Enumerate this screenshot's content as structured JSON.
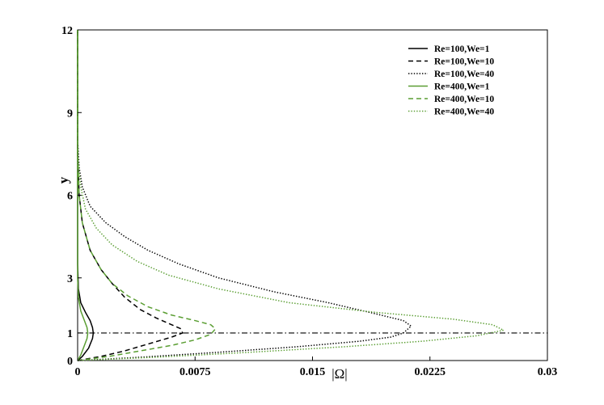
{
  "chart_data": {
    "type": "line",
    "title": "",
    "xlabel": "|Ω|",
    "ylabel": "y",
    "xlim": [
      0,
      0.03
    ],
    "ylim": [
      0,
      12
    ],
    "x_ticks": [
      "0",
      "0.0075",
      "0.015",
      "0.0225",
      "0.03"
    ],
    "y_ticks": [
      "0",
      "1",
      "3",
      "6",
      "9",
      "12"
    ],
    "legend_position": "top-right",
    "grid": false,
    "reference_line": {
      "y": 1,
      "style": "dash-dot",
      "color": "#000000"
    },
    "series": [
      {
        "name": "Re=100,We=1",
        "color": "#000000",
        "dash": "solid",
        "points": [
          [
            0,
            0
          ],
          [
            0.0003,
            0.15
          ],
          [
            0.0007,
            0.45
          ],
          [
            0.00095,
            0.8
          ],
          [
            0.001,
            1.0
          ],
          [
            0.00095,
            1.2
          ],
          [
            0.0008,
            1.45
          ],
          [
            0.0005,
            1.75
          ],
          [
            0.0002,
            2.1
          ],
          [
            5e-05,
            2.6
          ],
          [
            0,
            3.5
          ],
          [
            0,
            12
          ]
        ]
      },
      {
        "name": "Re=100,We=10",
        "color": "#000000",
        "dash": "dashed",
        "points": [
          [
            0,
            0
          ],
          [
            0.0015,
            0.15
          ],
          [
            0.003,
            0.35
          ],
          [
            0.0045,
            0.6
          ],
          [
            0.006,
            0.85
          ],
          [
            0.0067,
            1.0
          ],
          [
            0.0066,
            1.15
          ],
          [
            0.006,
            1.3
          ],
          [
            0.005,
            1.55
          ],
          [
            0.004,
            1.85
          ],
          [
            0.003,
            2.3
          ],
          [
            0.0022,
            2.8
          ],
          [
            0.0015,
            3.3
          ],
          [
            0.0008,
            4.0
          ],
          [
            0.0003,
            5.0
          ],
          [
            0.0001,
            6.0
          ],
          [
            0,
            7.5
          ],
          [
            0,
            12
          ]
        ]
      },
      {
        "name": "Re=100,We=40",
        "color": "#000000",
        "dash": "dotted",
        "points": [
          [
            0,
            0
          ],
          [
            0.004,
            0.12
          ],
          [
            0.009,
            0.3
          ],
          [
            0.014,
            0.5
          ],
          [
            0.018,
            0.7
          ],
          [
            0.02,
            0.85
          ],
          [
            0.0208,
            1.0
          ],
          [
            0.0213,
            1.25
          ],
          [
            0.0208,
            1.45
          ],
          [
            0.019,
            1.7
          ],
          [
            0.016,
            2.1
          ],
          [
            0.0125,
            2.5
          ],
          [
            0.009,
            3.0
          ],
          [
            0.0065,
            3.5
          ],
          [
            0.0045,
            4.0
          ],
          [
            0.003,
            4.5
          ],
          [
            0.0018,
            5.0
          ],
          [
            0.0008,
            5.6
          ],
          [
            0.0003,
            6.3
          ],
          [
            0.0001,
            7.0
          ],
          [
            0,
            8.0
          ],
          [
            0,
            12
          ]
        ]
      },
      {
        "name": "Re=400,We=1",
        "color": "#5a9e32",
        "dash": "solid",
        "points": [
          [
            0,
            0
          ],
          [
            0.0002,
            0.2
          ],
          [
            0.0004,
            0.5
          ],
          [
            0.0006,
            0.8
          ],
          [
            0.00065,
            1.0
          ],
          [
            0.0006,
            1.2
          ],
          [
            0.0004,
            1.5
          ],
          [
            0.0002,
            1.8
          ],
          [
            5e-05,
            2.3
          ],
          [
            0,
            3.0
          ],
          [
            0,
            12
          ]
        ]
      },
      {
        "name": "Re=400,We=10",
        "color": "#5a9e32",
        "dash": "dashed",
        "points": [
          [
            0,
            0
          ],
          [
            0.002,
            0.15
          ],
          [
            0.004,
            0.35
          ],
          [
            0.006,
            0.55
          ],
          [
            0.0075,
            0.75
          ],
          [
            0.0085,
            0.95
          ],
          [
            0.0088,
            1.15
          ],
          [
            0.0085,
            1.3
          ],
          [
            0.0075,
            1.45
          ],
          [
            0.006,
            1.65
          ],
          [
            0.0045,
            1.95
          ],
          [
            0.0032,
            2.35
          ],
          [
            0.0022,
            2.8
          ],
          [
            0.0015,
            3.3
          ],
          [
            0.0008,
            4.0
          ],
          [
            0.0003,
            5.0
          ],
          [
            0.0001,
            6.0
          ],
          [
            0,
            7.5
          ],
          [
            0,
            12
          ]
        ]
      },
      {
        "name": "Re=400,We=40",
        "color": "#5a9e32",
        "dash": "dotted",
        "points": [
          [
            0,
            0
          ],
          [
            0.005,
            0.12
          ],
          [
            0.011,
            0.3
          ],
          [
            0.017,
            0.5
          ],
          [
            0.022,
            0.7
          ],
          [
            0.0255,
            0.9
          ],
          [
            0.0272,
            1.1
          ],
          [
            0.0265,
            1.3
          ],
          [
            0.024,
            1.5
          ],
          [
            0.019,
            1.75
          ],
          [
            0.0135,
            2.1
          ],
          [
            0.009,
            2.6
          ],
          [
            0.0058,
            3.1
          ],
          [
            0.0038,
            3.6
          ],
          [
            0.0022,
            4.2
          ],
          [
            0.0012,
            4.8
          ],
          [
            0.0005,
            5.5
          ],
          [
            0.0002,
            6.3
          ],
          [
            0,
            7.5
          ],
          [
            0,
            12
          ]
        ]
      }
    ]
  }
}
